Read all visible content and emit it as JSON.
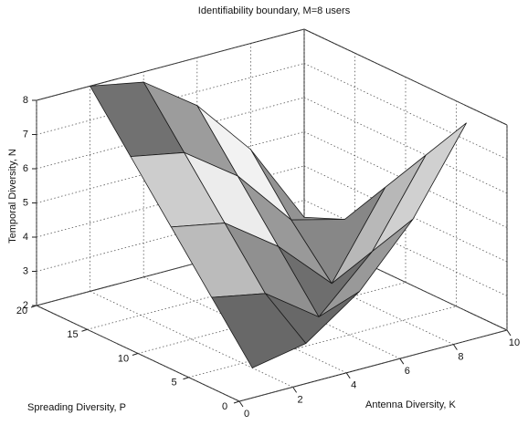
{
  "chart_data": {
    "type": "surface3d",
    "title": "Identifiability boundary, M=8 users",
    "xlabel": "Antenna Diversity, K",
    "ylabel": "Spreading Diversity, P",
    "zlabel": "Temporal Diversity, N",
    "x": [
      2,
      4,
      6,
      8,
      10
    ],
    "y": [
      4,
      8,
      12,
      16,
      20
    ],
    "z": [
      [
        2,
        2.3,
        3.4,
        5.1,
        7.5
      ],
      [
        3.5,
        3.2,
        2.1,
        3.6,
        6.0
      ],
      [
        5,
        4.7,
        3.6,
        2.1,
        4.5
      ],
      [
        6.5,
        6.2,
        5.1,
        3.4,
        3.0
      ],
      [
        8,
        7.7,
        6.6,
        4.9,
        2.5
      ]
    ],
    "xlim": [
      0,
      10
    ],
    "xticks": [
      0,
      2,
      4,
      6,
      8,
      10
    ],
    "ylim": [
      0,
      20
    ],
    "yticks": [
      0,
      5,
      10,
      15,
      20
    ],
    "zlim": [
      2,
      8
    ],
    "zticks": [
      2,
      3,
      4,
      5,
      6,
      7,
      8
    ],
    "colormap": [
      "#3a3a3a",
      "#f2f2f2"
    ],
    "grid": true
  }
}
